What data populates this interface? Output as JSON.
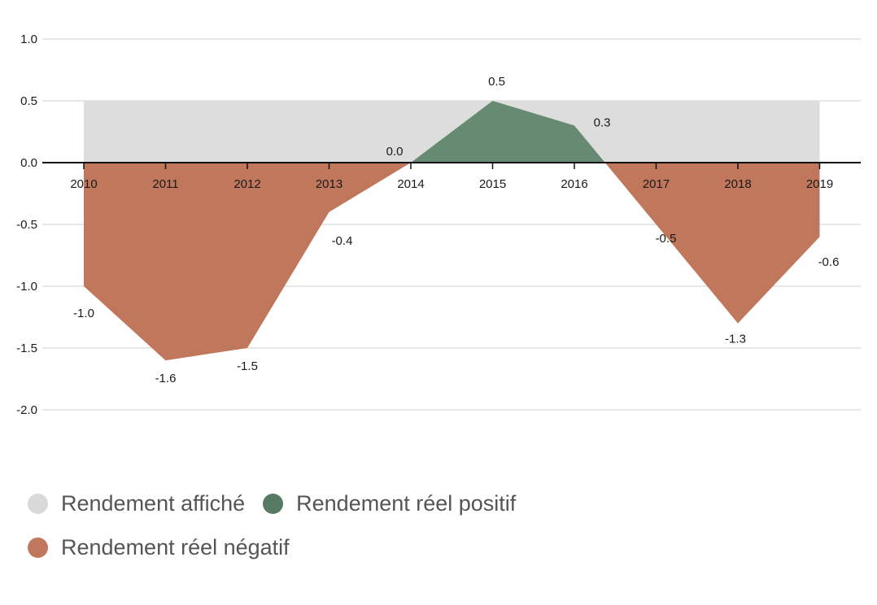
{
  "chart_data": {
    "type": "area",
    "x": [
      "2010",
      "2011",
      "2012",
      "2013",
      "2014",
      "2015",
      "2016",
      "2017",
      "2018",
      "2019"
    ],
    "ylim": [
      -2.0,
      1.0
    ],
    "yticks": [
      "1.0",
      "0.5",
      "0.0",
      "-0.5",
      "-1.0",
      "-1.5",
      "-2.0"
    ],
    "grid": true,
    "series": [
      {
        "name": "Rendement affiché",
        "kind": "band",
        "values": [
          0.5,
          0.5,
          0.5,
          0.5,
          0.5,
          0.5,
          0.5,
          0.5,
          0.5,
          0.5
        ]
      },
      {
        "name": "Rendement réel",
        "kind": "signed-area",
        "values": [
          -1.0,
          -1.6,
          -1.5,
          -0.4,
          0.0,
          0.5,
          0.3,
          -0.5,
          -1.3,
          -0.6
        ],
        "labels": [
          "-1.0",
          "-1.6",
          "-1.5",
          "-0.4",
          "0.0",
          "0.5",
          "0.3",
          "-0.5",
          "-1.3",
          "-0.6"
        ]
      }
    ],
    "legend_placement": "bottom-left"
  },
  "colors": {
    "band": "#dddddd",
    "positive": "#678a72",
    "negative": "#c0775b",
    "grid": "#cfcfcf",
    "axis": "#111111",
    "legend_affiche": "#d9d9d9",
    "legend_positif": "#567a63",
    "legend_negatif": "#c0775b"
  },
  "legend": {
    "affiche": "Rendement affiché",
    "positif": "Rendement réel positif",
    "negatif": "Rendement réel négatif"
  }
}
